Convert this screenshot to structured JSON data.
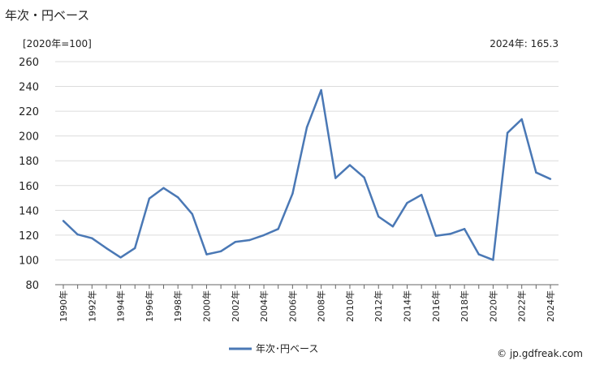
{
  "header": {
    "title": "年次・円ベース",
    "unit": "[2020年=100]",
    "latest_note": "2024年: 165.3"
  },
  "footer": {
    "source": "© jp.gdfreak.com"
  },
  "colors": {
    "series": "#4a78b5",
    "grid": "#dcdcdc",
    "axis": "#666666"
  },
  "chart_data": {
    "type": "line",
    "title": "年次・円ベース",
    "ylabel": "[2020年=100]",
    "ylim": [
      80,
      260
    ],
    "yticks": [
      80,
      100,
      120,
      140,
      160,
      180,
      200,
      220,
      240,
      260
    ],
    "grid": true,
    "legend_position": "bottom",
    "x": [
      1990,
      1991,
      1992,
      1993,
      1994,
      1995,
      1996,
      1997,
      1998,
      1999,
      2000,
      2001,
      2002,
      2003,
      2004,
      2005,
      2006,
      2007,
      2008,
      2009,
      2010,
      2011,
      2012,
      2013,
      2014,
      2015,
      2016,
      2017,
      2018,
      2019,
      2020,
      2021,
      2022,
      2023,
      2024
    ],
    "xtick_labels": [
      "1990年",
      "1992年",
      "1994年",
      "1996年",
      "1998年",
      "2000年",
      "2002年",
      "2004年",
      "2006年",
      "2008年",
      "2010年",
      "2012年",
      "2014年",
      "2016年",
      "2018年",
      "2020年",
      "2022年",
      "2024年"
    ],
    "series": [
      {
        "name": "年次･円ベース",
        "values": [
          131.5,
          120.5,
          117.5,
          109.5,
          102,
          109.5,
          149.5,
          158,
          150.5,
          137,
          104.5,
          107,
          114.5,
          116,
          120,
          125,
          153.5,
          207,
          237,
          166,
          176.5,
          166.5,
          135,
          127,
          146,
          152.5,
          119.5,
          121,
          125,
          104.5,
          100,
          202.5,
          213.5,
          170.5,
          165.3
        ]
      }
    ]
  }
}
